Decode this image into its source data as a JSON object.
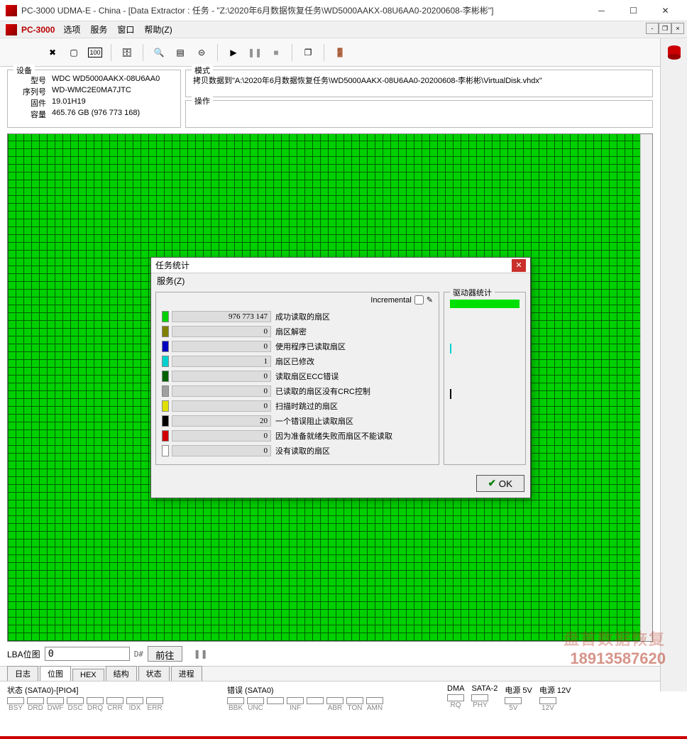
{
  "window": {
    "title": "PC-3000 UDMA-E - China - [Data Extractor : 任务 - \"Z:\\2020年6月数据恢复任务\\WD5000AAKX-08U6AA0-20200608-李彬彬\"]",
    "app_label": "PC-3000"
  },
  "menu": {
    "items": [
      "选项",
      "服务",
      "窗口",
      "帮助(Z)"
    ]
  },
  "device": {
    "legend": "设备",
    "rows": [
      {
        "label": "型号",
        "value": "WDC WD5000AAKX-08U6AA0"
      },
      {
        "label": "序列号",
        "value": "WD-WMC2E0MA7JTC"
      },
      {
        "label": "固件",
        "value": "19.01H19"
      },
      {
        "label": "容量",
        "value": "465.76 GB (976 773 168)"
      }
    ]
  },
  "mode": {
    "legend": "模式",
    "value": "拷贝数据到\"A:\\2020年6月数据恢复任务\\WD5000AAKX-08U6AA0-20200608-李彬彬\\VirtualDisk.vhdx\"",
    "op_legend": "操作"
  },
  "lba": {
    "label": "LBA位图",
    "value": "0",
    "hex": "D#",
    "go": "前往"
  },
  "tabs": [
    "日志",
    "位图",
    "HEX",
    "结构",
    "状态",
    "进程"
  ],
  "active_tab": 1,
  "status": {
    "s0": {
      "title": "状态 (SATA0)-[PIO4]",
      "bits": [
        "BSY",
        "DRD",
        "DWF",
        "DSC",
        "DRQ",
        "CRR",
        "IDX",
        "ERR"
      ]
    },
    "s1": {
      "title": "错误 (SATA0)",
      "bits": [
        "BBK",
        "UNC",
        "",
        "INF",
        "",
        "ABR",
        "TON",
        "AMN"
      ]
    },
    "dma": {
      "title": "DMA",
      "bits": [
        "RQ"
      ]
    },
    "sata2": {
      "title": "SATA-2",
      "bits": [
        "PHY"
      ]
    },
    "p5": {
      "title": "电源 5V",
      "bits": [
        "5V"
      ]
    },
    "p12": {
      "title": "电源 12V",
      "bits": [
        "12V"
      ]
    }
  },
  "dialog": {
    "title": "任务统计",
    "menu": "服务(Z)",
    "incremental": "Incremental",
    "drv_legend": "驱动器统计",
    "ok": "OK",
    "stats": [
      {
        "color": "#00d000",
        "value": "976 773 147",
        "label": "成功读取的扇区"
      },
      {
        "color": "#808000",
        "value": "0",
        "label": "扇区解密"
      },
      {
        "color": "#0000c0",
        "value": "0",
        "label": "使用程序已读取扇区"
      },
      {
        "color": "#00d0d0",
        "value": "1",
        "label": "扇区已修改"
      },
      {
        "color": "#006000",
        "value": "0",
        "label": "读取扇区ECC错误"
      },
      {
        "color": "#a0a0a0",
        "value": "0",
        "label": "已读取的扇区没有CRC控制"
      },
      {
        "color": "#e0e000",
        "value": "0",
        "label": "扫描时跳过的扇区"
      },
      {
        "color": "#000000",
        "value": "20",
        "label": "一个错误阻止读取扇区"
      },
      {
        "color": "#d00000",
        "value": "0",
        "label": "因为准备就绪失败而扇区不能读取"
      },
      {
        "color": "#ffffff",
        "value": "0",
        "label": "没有读取的扇区"
      }
    ]
  },
  "watermark": {
    "line1": "盘首数据恢复",
    "line2": "18913587620"
  },
  "colors": {
    "map_good": "#00d000",
    "map_grid": "#006000",
    "accent_red": "#c00000"
  }
}
